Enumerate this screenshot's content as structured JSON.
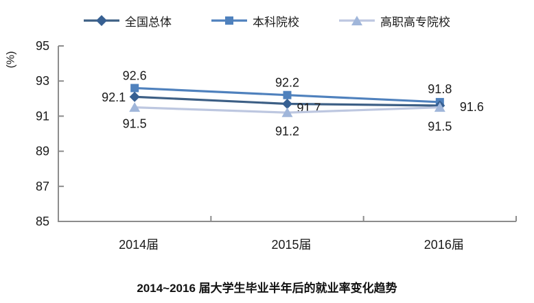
{
  "chart_data": {
    "type": "line",
    "title": "2014~2016 届大学生毕业半年后的就业率变化趋势",
    "ylabel": "(%)",
    "categories": [
      "2014届",
      "2015届",
      "2016届"
    ],
    "ylim": [
      85,
      95
    ],
    "yticks": [
      85,
      87,
      89,
      91,
      93,
      95
    ],
    "grid": false,
    "legend_position": "top",
    "axis_color": "#8c8c8c",
    "label_color": "#1a1a1a",
    "series": [
      {
        "name": "全国总体",
        "marker": "diamond",
        "color": "#376092",
        "line_color": "#3d5f85",
        "values": [
          92.1,
          91.7,
          91.6
        ]
      },
      {
        "name": "本科院校",
        "marker": "square",
        "color": "#4f81bd",
        "line_color": "#4f81bd",
        "values": [
          92.6,
          92.2,
          91.8
        ]
      },
      {
        "name": "高职高专院校",
        "marker": "triangle",
        "color": "#a0b6da",
        "line_color": "#bdc7e0",
        "values": [
          91.5,
          91.2,
          91.5
        ]
      }
    ]
  }
}
